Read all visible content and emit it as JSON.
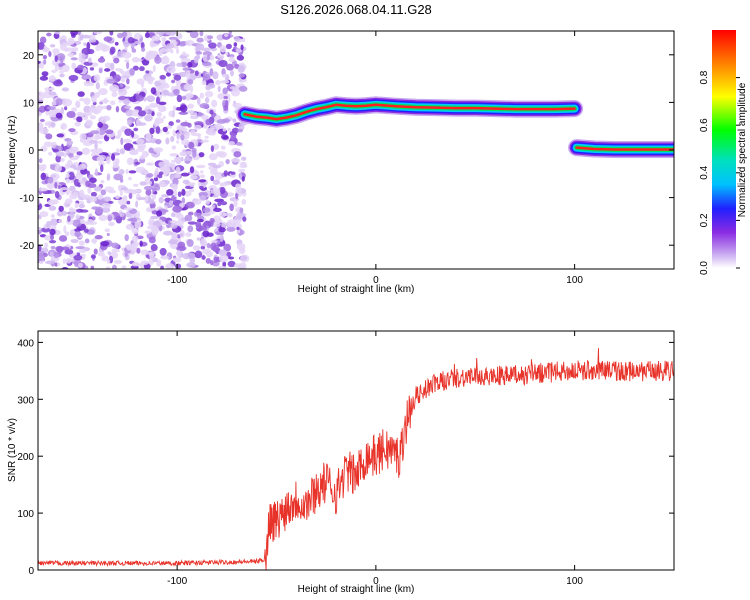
{
  "title": "S126.2026.068.04.11.G28",
  "chart_data": [
    {
      "type": "heatmap",
      "title": "S126.2026.068.04.11.G28",
      "xlabel": "Height of straight line (km)",
      "ylabel": "Frequency (Hz)",
      "xlim": [
        -170,
        150
      ],
      "ylim": [
        -25,
        25
      ],
      "xticks": [
        -100,
        0,
        100
      ],
      "yticks": [
        -20,
        -10,
        0,
        10,
        20
      ],
      "noise_region": {
        "x_from": -170,
        "x_to": -66
      },
      "signal_track": [
        {
          "x": -66,
          "y": 7.5
        },
        {
          "x": -60,
          "y": 7.0
        },
        {
          "x": -55,
          "y": 6.8
        },
        {
          "x": -50,
          "y": 6.5
        },
        {
          "x": -45,
          "y": 6.8
        },
        {
          "x": -40,
          "y": 7.3
        },
        {
          "x": -35,
          "y": 8.0
        },
        {
          "x": -30,
          "y": 8.6
        },
        {
          "x": -25,
          "y": 9.0
        },
        {
          "x": -20,
          "y": 9.5
        },
        {
          "x": -15,
          "y": 9.3
        },
        {
          "x": -10,
          "y": 9.2
        },
        {
          "x": -5,
          "y": 9.3
        },
        {
          "x": 0,
          "y": 9.5
        },
        {
          "x": 10,
          "y": 9.2
        },
        {
          "x": 20,
          "y": 9.0
        },
        {
          "x": 30,
          "y": 8.9
        },
        {
          "x": 40,
          "y": 8.8
        },
        {
          "x": 50,
          "y": 8.8
        },
        {
          "x": 60,
          "y": 8.7
        },
        {
          "x": 70,
          "y": 8.6
        },
        {
          "x": 80,
          "y": 8.6
        },
        {
          "x": 90,
          "y": 8.6
        },
        {
          "x": 100,
          "y": 8.7
        },
        {
          "x": 101,
          "y": 0.5
        },
        {
          "x": 110,
          "y": 0.2
        },
        {
          "x": 120,
          "y": 0.1
        },
        {
          "x": 130,
          "y": 0.1
        },
        {
          "x": 140,
          "y": 0.1
        },
        {
          "x": 150,
          "y": 0.1
        }
      ],
      "colorbar": {
        "label": "Normalized spectral amplitude",
        "range": [
          0,
          1
        ],
        "ticks": [
          0.0,
          0.2,
          0.4,
          0.6,
          0.8
        ]
      }
    },
    {
      "type": "line",
      "xlabel": "Height of straight line (km)",
      "ylabel": "SNR (10 * v/v)",
      "xlim": [
        -170,
        150
      ],
      "ylim": [
        0,
        420
      ],
      "xticks": [
        -100,
        0,
        100
      ],
      "yticks": [
        0,
        100,
        200,
        300,
        400
      ],
      "series": [
        {
          "name": "SNR",
          "color": "#e8332a",
          "x": [
            -170,
            -100,
            -60,
            -55,
            -54,
            -50,
            -45,
            -40,
            -35,
            -30,
            -25,
            -20,
            -15,
            -10,
            -5,
            0,
            5,
            10,
            12,
            14,
            16,
            20,
            25,
            30,
            40,
            50,
            60,
            70,
            80,
            90,
            100,
            110,
            120,
            130,
            140,
            150
          ],
          "y": [
            12,
            12,
            15,
            20,
            90,
            85,
            110,
            125,
            115,
            140,
            155,
            135,
            175,
            165,
            200,
            200,
            215,
            205,
            195,
            240,
            270,
            305,
            318,
            328,
            338,
            340,
            342,
            342,
            345,
            348,
            350,
            352,
            350,
            348,
            350,
            350
          ]
        }
      ]
    }
  ]
}
